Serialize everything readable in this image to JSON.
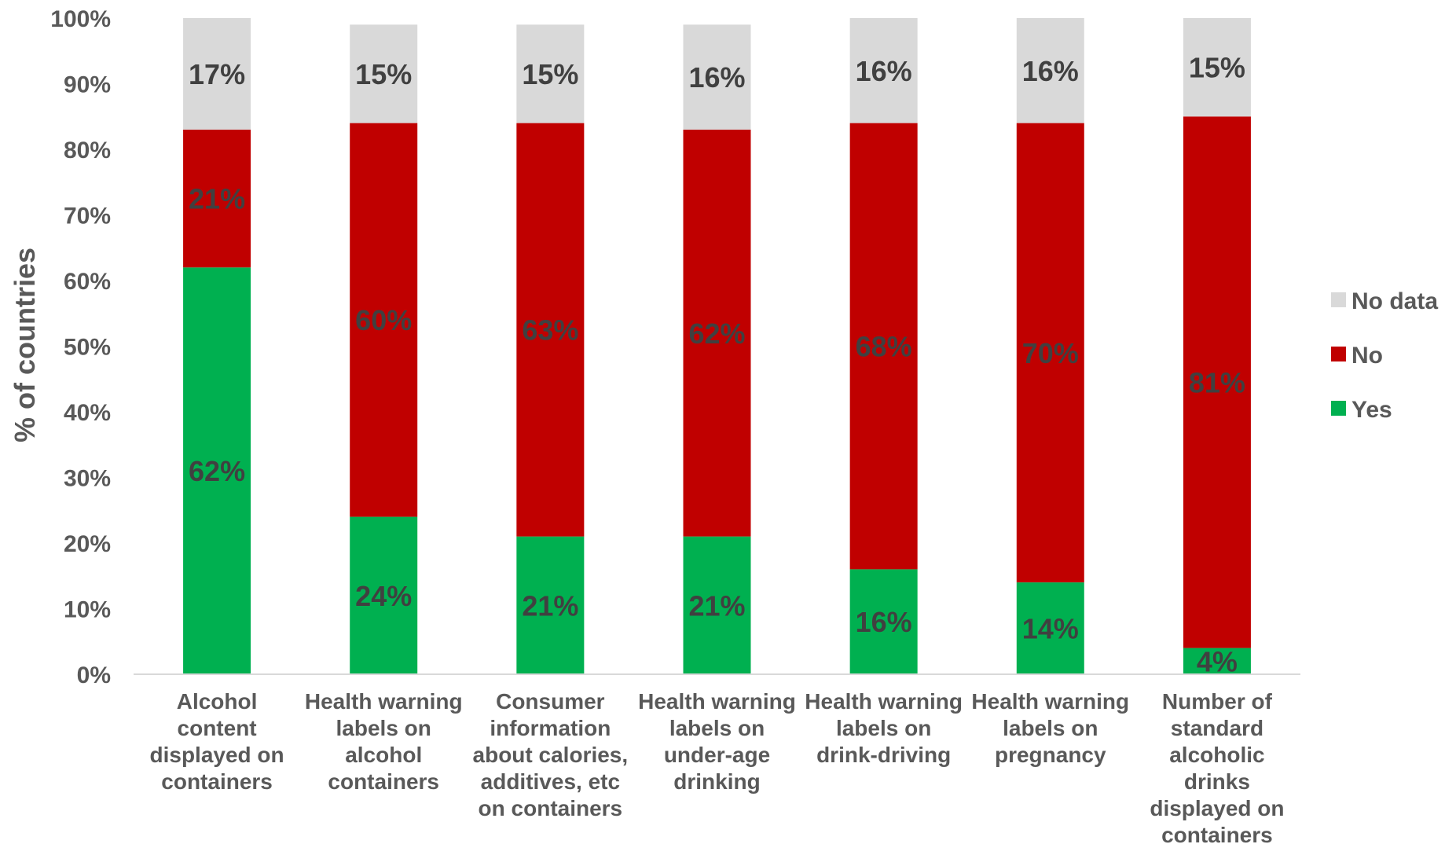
{
  "chart_data": {
    "type": "bar",
    "stacked": true,
    "ylabel": "% of countries",
    "ylim": [
      0,
      100
    ],
    "yticks": [
      "0%",
      "10%",
      "20%",
      "30%",
      "40%",
      "50%",
      "60%",
      "70%",
      "80%",
      "90%",
      "100%"
    ],
    "categories": [
      [
        "Alcohol",
        "content",
        "displayed on",
        "containers"
      ],
      [
        "Health warning",
        "labels on",
        "alcohol",
        "containers"
      ],
      [
        "Consumer",
        "information",
        "about calories,",
        "additives, etc",
        "on containers"
      ],
      [
        "Health warning",
        "labels on",
        "under-age",
        "drinking"
      ],
      [
        "Health warning",
        "labels on",
        "drink-driving"
      ],
      [
        "Health warning",
        "labels on",
        "pregnancy"
      ],
      [
        "Number of",
        "standard",
        "alcoholic",
        "drinks",
        "displayed on",
        "containers"
      ]
    ],
    "series": [
      {
        "name": "Yes",
        "color": "#00B050",
        "values": [
          62,
          24,
          21,
          21,
          16,
          14,
          4
        ],
        "labels": [
          "62%",
          "24%",
          "21%",
          "21%",
          "16%",
          "14%",
          "4%"
        ]
      },
      {
        "name": "No",
        "color": "#C00000",
        "values": [
          21,
          60,
          63,
          62,
          68,
          70,
          81
        ],
        "labels": [
          "21%",
          "60%",
          "63%",
          "62%",
          "68%",
          "70%",
          "81%"
        ]
      },
      {
        "name": "No data",
        "color": "#D9D9D9",
        "values": [
          17,
          15,
          15,
          16,
          16,
          16,
          15
        ],
        "labels": [
          "17%",
          "15%",
          "15%",
          "16%",
          "16%",
          "16%",
          "15%"
        ]
      }
    ],
    "legend": [
      "No data",
      "No",
      "Yes"
    ],
    "legend_position": "right",
    "grid": false
  }
}
